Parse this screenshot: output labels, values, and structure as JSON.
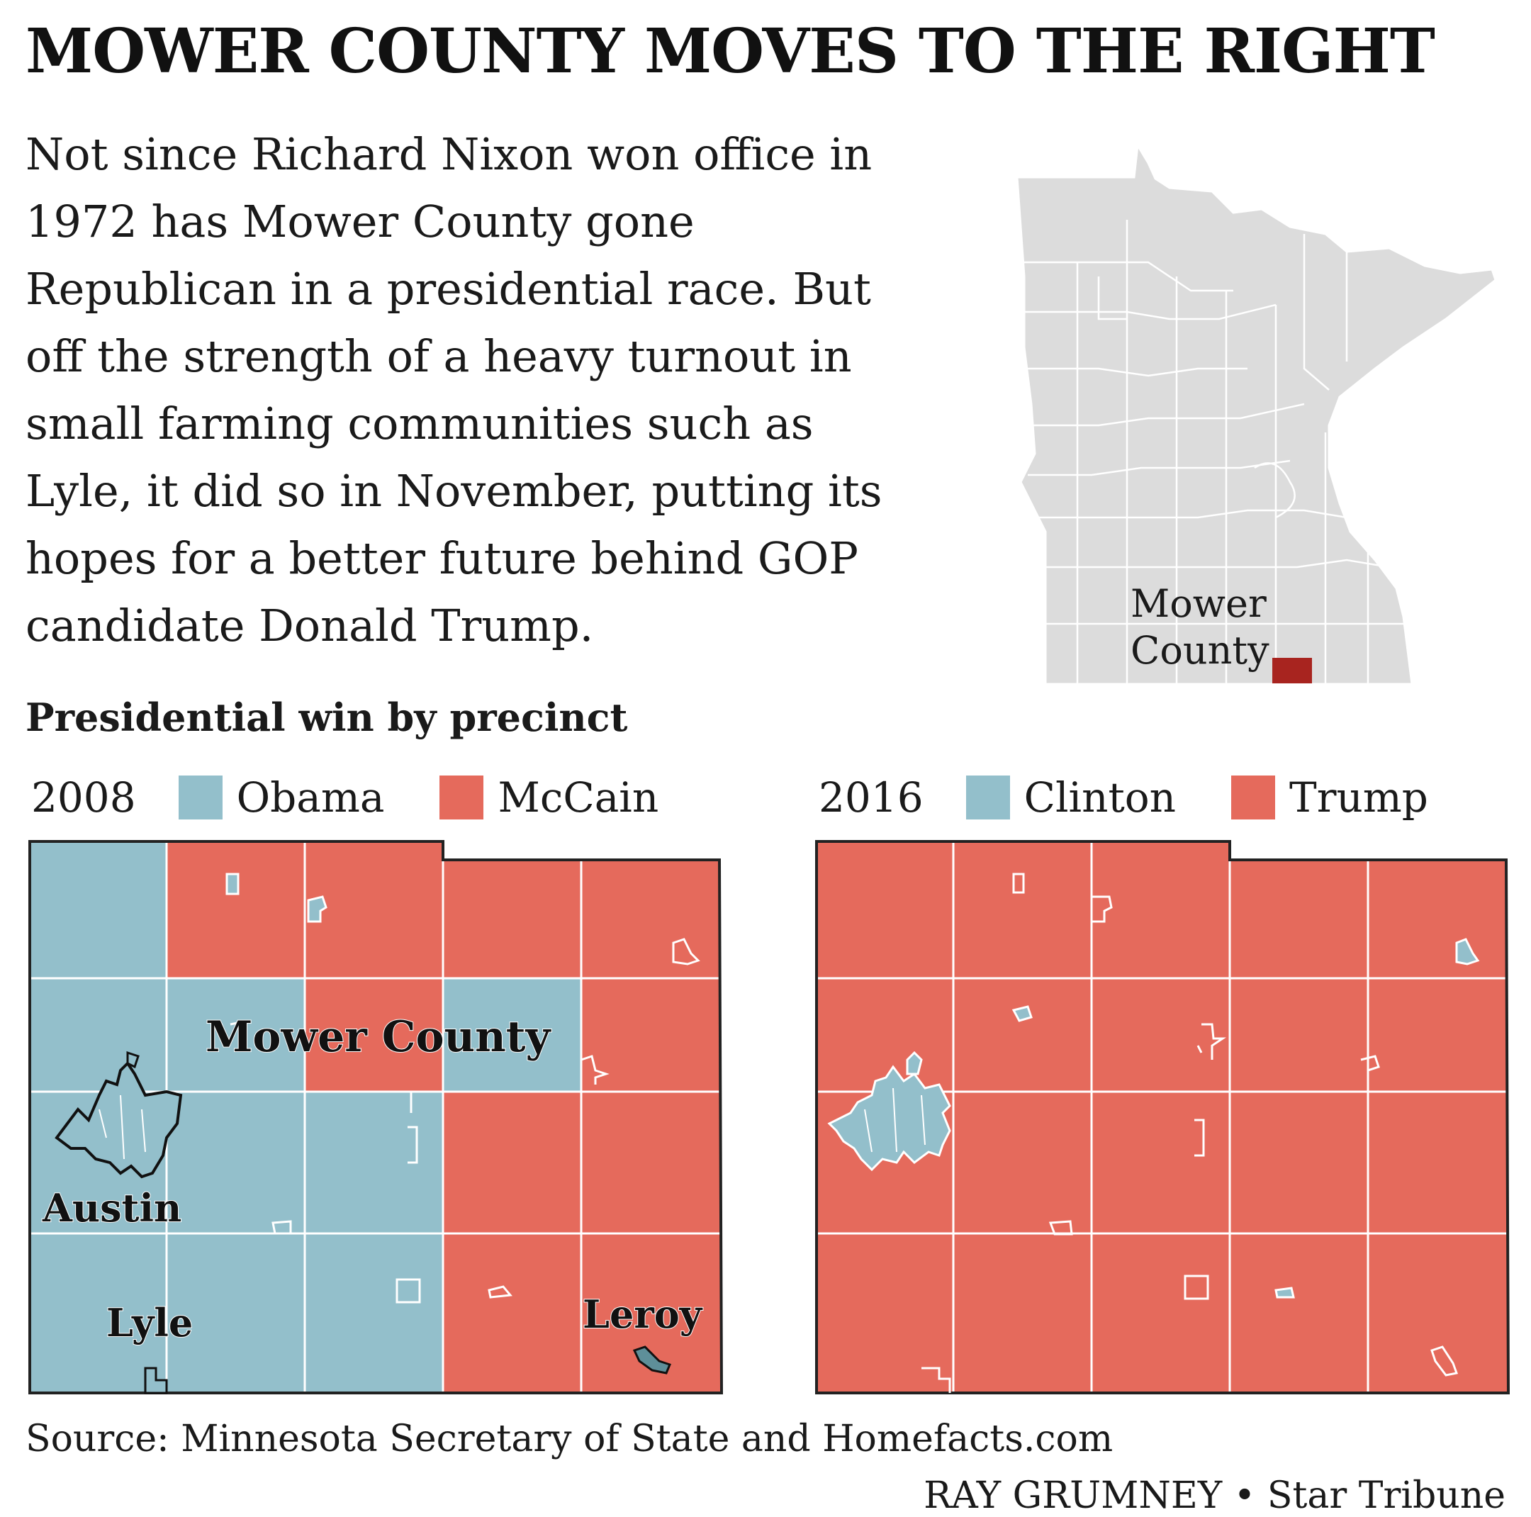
{
  "headline": "MOWER COUNTY MOVES TO THE RIGHT",
  "intro_lines": [
    "Not since Richard Nixon won office in",
    "1972 has Mower County gone",
    "Republican in a presidential race. But",
    "off the strength of a heavy turnout in",
    "small farming communities such as",
    "Lyle, it did so in November, putting its",
    "hopes for a better future behind GOP",
    "candidate Donald Trump."
  ],
  "locator_map": {
    "label_line1": "Mower",
    "label_line2": "County",
    "state_color": "#dcdcdc",
    "highlight_color": "#a8241f"
  },
  "subhead": "Presidential win by precinct",
  "colors": {
    "democrat": "#93bfcb",
    "republican": "#e56a5c"
  },
  "maps": [
    {
      "year": "2008",
      "dem_label": "Obama",
      "rep_label": "McCain",
      "place_labels": {
        "county": "Mower County",
        "austin": "Austin",
        "lyle": "Lyle",
        "leroy": "Leroy"
      },
      "grid_winners": [
        [
          "D",
          "R",
          "R",
          "R",
          "R"
        ],
        [
          "D",
          "D",
          "R",
          "D",
          "R"
        ],
        [
          "D",
          "D",
          "D",
          "R",
          "R"
        ],
        [
          "D",
          "D",
          "D",
          "R",
          "R"
        ]
      ]
    },
    {
      "year": "2016",
      "dem_label": "Clinton",
      "rep_label": "Trump",
      "grid_winners": [
        [
          "R",
          "R",
          "R",
          "R",
          "R"
        ],
        [
          "R",
          "R",
          "R",
          "R",
          "R"
        ],
        [
          "R",
          "R",
          "R",
          "R",
          "R"
        ],
        [
          "R",
          "R",
          "R",
          "R",
          "R"
        ]
      ]
    }
  ],
  "source": "Source: Minnesota Secretary of State and Homefacts.com",
  "credit": "RAY GRUMNEY • Star Tribune"
}
